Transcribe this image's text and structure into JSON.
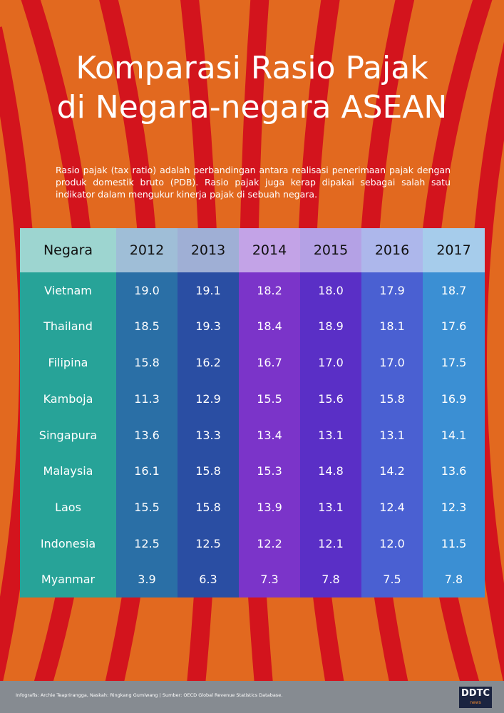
{
  "header": {
    "title_lines": [
      "Komparasi Rasio Pajak",
      "di Negara-negara ASEAN"
    ],
    "description": "Rasio pajak (tax ratio) adalah perbandingan antara realisasi penerimaan pajak dengan produk domestik bruto (PDB). Rasio pajak juga kerap dipakai sebagai salah satu indikator dalam mengukur kinerja pajak di sebuah negara."
  },
  "table": {
    "columns": [
      "Negara",
      "2012",
      "2013",
      "2014",
      "2015",
      "2016",
      "2017"
    ],
    "rows": [
      [
        "Vietnam",
        "19.0",
        "19.1",
        "18.2",
        "18.0",
        "17.9",
        "18.7"
      ],
      [
        "Thailand",
        "18.5",
        "19.3",
        "18.4",
        "18.9",
        "18.1",
        "17.6"
      ],
      [
        "Filipina",
        "15.8",
        "16.2",
        "16.7",
        "17.0",
        "17.0",
        "17.5"
      ],
      [
        "Kamboja",
        "11.3",
        "12.9",
        "15.5",
        "15.6",
        "15.8",
        "16.9"
      ],
      [
        "Singapura",
        "13.6",
        "13.3",
        "13.4",
        "13.1",
        "13.1",
        "14.1"
      ],
      [
        "Malaysia",
        "16.1",
        "15.8",
        "15.3",
        "14.8",
        "14.2",
        "13.6"
      ],
      [
        "Laos",
        "15.5",
        "15.8",
        "13.9",
        "13.1",
        "12.4",
        "12.3"
      ],
      [
        "Indonesia",
        "12.5",
        "12.5",
        "12.2",
        "12.1",
        "12.0",
        "11.5"
      ],
      [
        "Myanmar",
        "3.9",
        "6.3",
        "7.3",
        "7.8",
        "7.5",
        "7.8"
      ]
    ]
  },
  "footer": {
    "credits": "Infografis: Archie Teaprirangga, Naskah: Ringkang Gumiwang | Sumber: OECD Global Revenue Statistics Database.",
    "logo": "DDTC",
    "logo_sub": "news"
  }
}
